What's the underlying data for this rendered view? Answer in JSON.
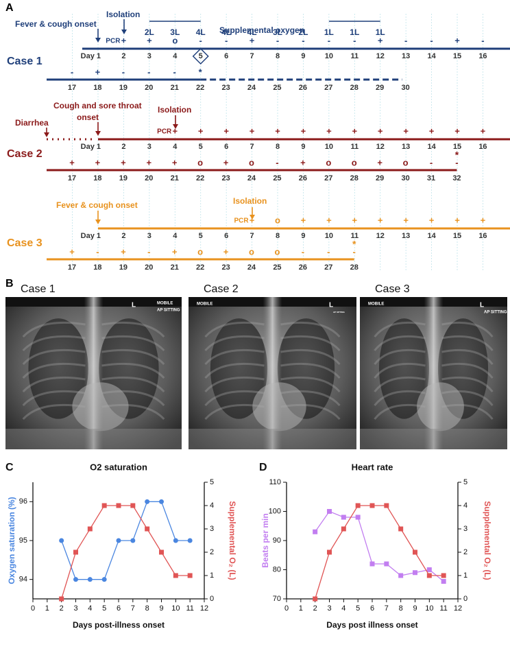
{
  "panel_a": {
    "letter": "A",
    "cases": [
      {
        "name": "Case 1",
        "color": "#1f3f7a",
        "pcr_label": "PCR",
        "annotations": [
          "Fever & cough onset",
          "Isolation"
        ],
        "oxygen": {
          "label": "Supplemental oxygen",
          "flows": [
            "2L",
            "3L",
            "4L",
            "4L",
            "4L",
            "3L",
            "2L",
            "1L",
            "1L",
            "1L"
          ]
        },
        "rows": [
          {
            "days": [
              "Day 1",
              2,
              3,
              4,
              5,
              6,
              7,
              8,
              9,
              10,
              11,
              12,
              13,
              14,
              15,
              16
            ],
            "symbols": [
              null,
              "+",
              "+",
              "o",
              "-",
              "-",
              "+",
              "-",
              "-",
              "-",
              "-",
              "+",
              "-",
              "-",
              "+",
              "-"
            ]
          },
          {
            "days": [
              17,
              18,
              19,
              20,
              21,
              22,
              23,
              24,
              25,
              26,
              27,
              28,
              29,
              30
            ],
            "symbols": [
              "-",
              "+",
              "-",
              "-",
              "-",
              "*",
              null,
              null,
              null,
              null,
              null,
              null,
              null,
              null
            ]
          }
        ]
      },
      {
        "name": "Case 2",
        "color": "#8b1a1a",
        "pcr_label": "PCR",
        "annotations": [
          "Diarrhea",
          "Cough and sore throat",
          "onset",
          "Isolation"
        ],
        "end_mark": "*",
        "rows": [
          {
            "days": [
              "Day 1",
              2,
              3,
              4,
              5,
              6,
              7,
              8,
              9,
              10,
              11,
              12,
              13,
              14,
              15,
              16
            ],
            "symbols": [
              null,
              null,
              null,
              "+",
              "+",
              "+",
              "+",
              "+",
              "+",
              "+",
              "+",
              "+",
              "+",
              "+",
              "+",
              "+"
            ]
          },
          {
            "days": [
              17,
              18,
              19,
              20,
              21,
              22,
              23,
              24,
              25,
              26,
              27,
              28,
              29,
              30,
              31,
              32
            ],
            "symbols": [
              "+",
              "+",
              "+",
              "+",
              "+",
              "o",
              "+",
              "o",
              "-",
              "+",
              "o",
              "o",
              "+",
              "o",
              "-",
              "-"
            ]
          }
        ]
      },
      {
        "name": "Case 3",
        "color": "#e8921e",
        "pcr_label": "PCR",
        "annotations": [
          "Fever & cough onset",
          "Isolation"
        ],
        "end_mark": "*",
        "rows": [
          {
            "days": [
              "Day 1",
              2,
              3,
              4,
              5,
              6,
              7,
              8,
              9,
              10,
              11,
              12,
              13,
              14,
              15,
              16
            ],
            "symbols": [
              null,
              null,
              null,
              null,
              null,
              null,
              "+",
              "o",
              "+",
              "+",
              "+",
              "+",
              "+",
              "+",
              "+",
              "+"
            ]
          },
          {
            "days": [
              17,
              18,
              19,
              20,
              21,
              22,
              23,
              24,
              25,
              26,
              27,
              28
            ],
            "symbols": [
              "+",
              "-",
              "+",
              "-",
              "+",
              "o",
              "+",
              "o",
              "o",
              "-",
              "-",
              "-"
            ]
          }
        ]
      }
    ]
  },
  "panel_b": {
    "letter": "B",
    "images": [
      {
        "title": "Case 1",
        "markers": [
          "MOBILE",
          "AP SITTING",
          "L"
        ]
      },
      {
        "title": "Case 2",
        "markers": [
          "MOBILE",
          "AP SITTING",
          "L"
        ]
      },
      {
        "title": "Case 3",
        "markers": [
          "MOBILE",
          "AP SITTING",
          "L"
        ]
      }
    ]
  },
  "chart_data": [
    {
      "type": "line",
      "letter": "C",
      "title": "O2 saturation",
      "x_label": "Days post-illness onset",
      "y_label": "Oxygen saturation (%)",
      "y2_label": "Supplemental O₂ (L)",
      "xlim": [
        0,
        12
      ],
      "xticks": [
        0,
        1,
        2,
        3,
        4,
        5,
        6,
        7,
        8,
        9,
        10,
        11,
        12
      ],
      "ylim": [
        93.5,
        96.5
      ],
      "yticks": [
        94,
        95,
        96
      ],
      "y2lim": [
        0,
        5
      ],
      "y2ticks": [
        0,
        1,
        2,
        3,
        4,
        5
      ],
      "series": [
        {
          "name": "Oxygen saturation",
          "color": "#4a86e0",
          "marker": "circle",
          "x": [
            2,
            3,
            4,
            5,
            6,
            7,
            8,
            9,
            10,
            11
          ],
          "values": [
            95,
            94,
            94,
            94,
            95,
            95,
            96,
            96,
            95,
            95
          ]
        },
        {
          "name": "Supplemental O2",
          "color": "#e05555",
          "marker": "square",
          "axis": "y2",
          "x": [
            2,
            3,
            4,
            5,
            6,
            7,
            8,
            9,
            10,
            11
          ],
          "values": [
            0,
            2,
            3,
            4,
            4,
            4,
            3,
            2,
            1,
            1
          ]
        }
      ]
    },
    {
      "type": "line",
      "letter": "D",
      "title": "Heart rate",
      "x_label": "Days post illness onset",
      "y_label": "Beats per min",
      "y2_label": "Supplemental O₂ (L)",
      "xlim": [
        0,
        12
      ],
      "xticks": [
        0,
        1,
        2,
        3,
        4,
        5,
        6,
        7,
        8,
        9,
        10,
        11,
        12
      ],
      "ylim": [
        70,
        110
      ],
      "yticks": [
        70,
        80,
        90,
        100,
        110
      ],
      "y2lim": [
        0,
        5
      ],
      "y2ticks": [
        0,
        1,
        2,
        3,
        4,
        5
      ],
      "series": [
        {
          "name": "Heart rate",
          "color": "#c27ef0",
          "marker": "square",
          "x": [
            2,
            3,
            4,
            5,
            6,
            7,
            8,
            9,
            10,
            11
          ],
          "values": [
            93,
            100,
            98,
            98,
            82,
            82,
            78,
            79,
            80,
            76
          ]
        },
        {
          "name": "Supplemental O2",
          "color": "#e05555",
          "marker": "square",
          "axis": "y2",
          "x": [
            2,
            3,
            4,
            5,
            6,
            7,
            8,
            9,
            10,
            11
          ],
          "values": [
            0,
            2,
            3,
            4,
            4,
            4,
            3,
            2,
            1,
            1
          ]
        }
      ]
    }
  ]
}
